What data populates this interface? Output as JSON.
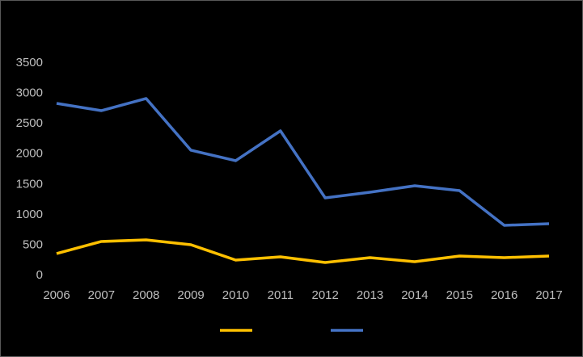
{
  "chart_data": {
    "type": "line",
    "categories": [
      "2006",
      "2007",
      "2008",
      "2009",
      "2010",
      "2011",
      "2012",
      "2013",
      "2014",
      "2015",
      "2016",
      "2017"
    ],
    "series": [
      {
        "color": "#ffc000",
        "values": [
          360,
          559,
          585,
          506,
          253,
          306,
          213,
          293,
          226,
          319,
          293,
          319
        ]
      },
      {
        "color": "#4472c4",
        "values": [
          2835,
          2715,
          2915,
          2063,
          1890,
          2382,
          1278,
          1371,
          1477,
          1397,
          825,
          852
        ]
      }
    ],
    "ylim": [
      0,
      3500
    ],
    "yticks": [
      0,
      500,
      1000,
      1500,
      2000,
      2500,
      3000,
      3500
    ],
    "grid": false,
    "legend": "bottom"
  }
}
